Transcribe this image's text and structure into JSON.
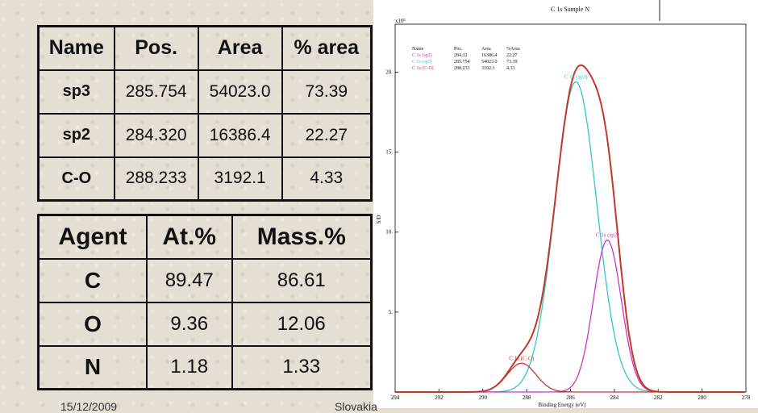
{
  "table1": {
    "headers": [
      "Name",
      "Pos.",
      "Area",
      "% area"
    ],
    "rows": [
      [
        "sp3",
        "285.754",
        "54023.0",
        "73.39"
      ],
      [
        "sp2",
        "284.320",
        "16386.4",
        "22.27"
      ],
      [
        "C-O",
        "288.233",
        "3192.1",
        "4.33"
      ]
    ]
  },
  "table2": {
    "headers": [
      "Agent",
      "At.%",
      "Mass.%"
    ],
    "rows": [
      [
        "C",
        "89.47",
        "86.61"
      ],
      [
        "O",
        "9.36",
        "12.06"
      ],
      [
        "N",
        "1.18",
        "1.33"
      ]
    ]
  },
  "footer": {
    "left": "15/12/2009",
    "mid": "Slovakia"
  },
  "chart_data": {
    "type": "line",
    "title": "C 1s Sample N",
    "xlabel": "Binding Energy (eV)",
    "ylabel": "S/D",
    "y_multiplier": "x10³",
    "xlim": [
      294,
      278
    ],
    "ylim": [
      0,
      23
    ],
    "x_ticks": [
      294,
      292,
      290,
      288,
      286,
      284,
      282,
      280,
      278
    ],
    "y_ticks": [
      5,
      10,
      15,
      20
    ],
    "legend": {
      "headers": [
        "Name",
        "Pos.",
        "Area",
        "%Area"
      ],
      "rows": [
        [
          "C 1s (sp2)",
          "284.32",
          "16386.4",
          "22.27"
        ],
        [
          "C 1s (sp3)",
          "285.754",
          "54023.0",
          "73.39"
        ],
        [
          "C 1s (C-O)",
          "288.233",
          "3192.1",
          "4.33"
        ]
      ]
    },
    "series": [
      {
        "name": "C 1s (sp3)",
        "center": 285.754,
        "height": 19.4,
        "fwhm": 2.25,
        "color": "#35c6c6"
      },
      {
        "name": "C 1s (sp2)",
        "center": 284.32,
        "height": 9.5,
        "fwhm": 1.5,
        "color": "#cc33cc"
      },
      {
        "name": "C 1s (C-O)",
        "center": 288.233,
        "height": 1.8,
        "fwhm": 1.55,
        "color": "#cc3333"
      }
    ],
    "envelope_color": "#c0392b",
    "peak_labels": [
      "C 1s (sp3)",
      "C 1s (sp2)",
      "C 1s (C-O)"
    ],
    "grid": false,
    "legend_position": "top-left"
  }
}
